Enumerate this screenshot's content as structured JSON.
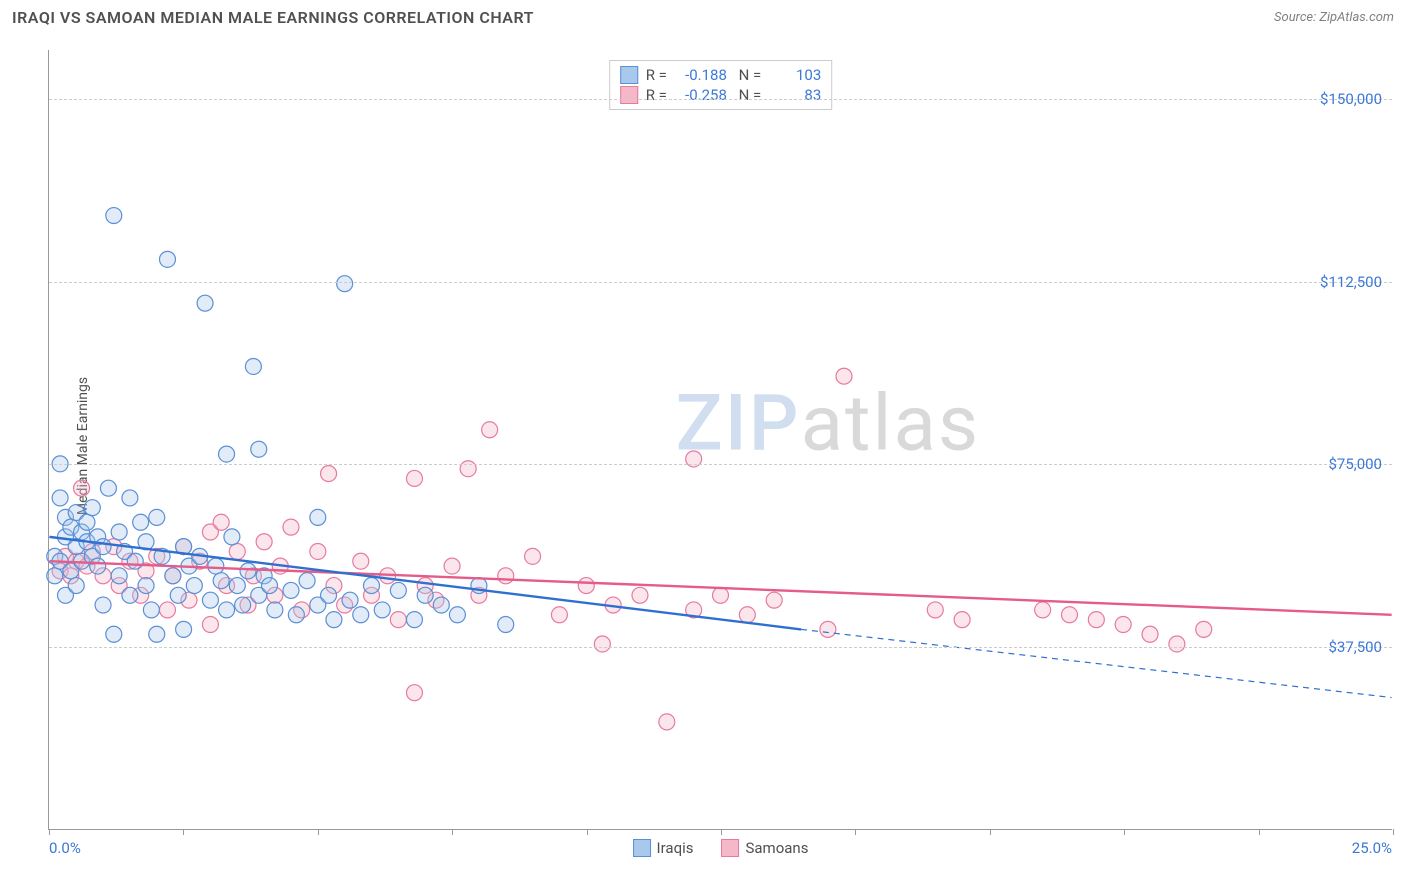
{
  "header": {
    "title": "IRAQI VS SAMOAN MEDIAN MALE EARNINGS CORRELATION CHART",
    "source": "Source: ZipAtlas.com"
  },
  "watermark": {
    "part1": "ZIP",
    "part2": "atlas"
  },
  "chart": {
    "type": "scatter",
    "background_color": "#ffffff",
    "grid_color": "#cccccc",
    "axis_color": "#999999",
    "ylabel": "Median Male Earnings",
    "ylabel_fontsize": 14,
    "xlim": [
      0,
      25
    ],
    "ylim": [
      0,
      160000
    ],
    "x_left_label": "0.0%",
    "x_right_label": "25.0%",
    "xticks": [
      0,
      2.5,
      5,
      7.5,
      10,
      12.5,
      15,
      17.5,
      20,
      22.5,
      25
    ],
    "yticks": [
      {
        "value": 37500,
        "label": "$37,500"
      },
      {
        "value": 75000,
        "label": "$75,000"
      },
      {
        "value": 112500,
        "label": "$112,500"
      },
      {
        "value": 150000,
        "label": "$150,000"
      }
    ],
    "tick_label_color": "#3b78d8",
    "tick_label_fontsize": 15,
    "marker_radius": 8,
    "marker_fill_opacity": 0.35,
    "marker_stroke_width": 1.2,
    "line_width_solid": 2.4,
    "line_width_dashed": 1.2,
    "series": {
      "iraqi": {
        "label": "Iraqis",
        "fill_color": "#a8c8ec",
        "stroke_color": "#5b8fd6",
        "line_color": "#2f6fd0",
        "R": "-0.188",
        "N": "103",
        "trend_solid": {
          "x1": 0,
          "y1": 60000,
          "x2": 14,
          "y2": 41000
        },
        "trend_dashed": {
          "x1": 14,
          "y1": 41000,
          "x2": 25,
          "y2": 27000
        },
        "points": [
          [
            0.1,
            56000
          ],
          [
            0.1,
            52000
          ],
          [
            0.2,
            75000
          ],
          [
            0.2,
            55000
          ],
          [
            0.2,
            68000
          ],
          [
            0.3,
            60000
          ],
          [
            0.3,
            48000
          ],
          [
            0.3,
            64000
          ],
          [
            0.4,
            62000
          ],
          [
            0.4,
            53000
          ],
          [
            0.5,
            58000
          ],
          [
            0.5,
            65000
          ],
          [
            0.5,
            50000
          ],
          [
            0.6,
            61000
          ],
          [
            0.6,
            55000
          ],
          [
            0.7,
            59000
          ],
          [
            0.7,
            63000
          ],
          [
            0.8,
            56000
          ],
          [
            0.8,
            66000
          ],
          [
            0.9,
            54000
          ],
          [
            0.9,
            60000
          ],
          [
            1.0,
            46000
          ],
          [
            1.0,
            58000
          ],
          [
            1.1,
            70000
          ],
          [
            1.2,
            40000
          ],
          [
            1.2,
            126000
          ],
          [
            1.3,
            52000
          ],
          [
            1.3,
            61000
          ],
          [
            1.4,
            57000
          ],
          [
            1.5,
            48000
          ],
          [
            1.5,
            68000
          ],
          [
            1.6,
            55000
          ],
          [
            1.7,
            63000
          ],
          [
            1.8,
            50000
          ],
          [
            1.8,
            59000
          ],
          [
            1.9,
            45000
          ],
          [
            2.0,
            64000
          ],
          [
            2.0,
            40000
          ],
          [
            2.1,
            56000
          ],
          [
            2.2,
            117000
          ],
          [
            2.3,
            52000
          ],
          [
            2.4,
            48000
          ],
          [
            2.5,
            58000
          ],
          [
            2.5,
            41000
          ],
          [
            2.6,
            54000
          ],
          [
            2.7,
            50000
          ],
          [
            2.8,
            56000
          ],
          [
            2.9,
            108000
          ],
          [
            3.0,
            47000
          ],
          [
            3.1,
            54000
          ],
          [
            3.2,
            51000
          ],
          [
            3.3,
            77000
          ],
          [
            3.3,
            45000
          ],
          [
            3.4,
            60000
          ],
          [
            3.5,
            50000
          ],
          [
            3.6,
            46000
          ],
          [
            3.7,
            53000
          ],
          [
            3.8,
            95000
          ],
          [
            3.9,
            48000
          ],
          [
            3.9,
            78000
          ],
          [
            4.0,
            52000
          ],
          [
            4.1,
            50000
          ],
          [
            4.2,
            45000
          ],
          [
            4.5,
            49000
          ],
          [
            4.6,
            44000
          ],
          [
            4.8,
            51000
          ],
          [
            5.0,
            46000
          ],
          [
            5.0,
            64000
          ],
          [
            5.2,
            48000
          ],
          [
            5.3,
            43000
          ],
          [
            5.5,
            112000
          ],
          [
            5.6,
            47000
          ],
          [
            5.8,
            44000
          ],
          [
            6.0,
            50000
          ],
          [
            6.2,
            45000
          ],
          [
            6.5,
            49000
          ],
          [
            6.8,
            43000
          ],
          [
            7.0,
            48000
          ],
          [
            7.3,
            46000
          ],
          [
            7.6,
            44000
          ],
          [
            8.0,
            50000
          ],
          [
            8.5,
            42000
          ]
        ]
      },
      "samoan": {
        "label": "Samoans",
        "fill_color": "#f4b8c8",
        "stroke_color": "#e879a0",
        "line_color": "#e55b8a",
        "R": "-0.258",
        "N": "83",
        "trend_solid": {
          "x1": 0,
          "y1": 55000,
          "x2": 25,
          "y2": 44000
        },
        "trend_dashed": null,
        "points": [
          [
            0.2,
            53000
          ],
          [
            0.3,
            56000
          ],
          [
            0.4,
            52000
          ],
          [
            0.5,
            55000
          ],
          [
            0.6,
            70000
          ],
          [
            0.7,
            54000
          ],
          [
            0.8,
            57000
          ],
          [
            1.0,
            52000
          ],
          [
            1.2,
            58000
          ],
          [
            1.3,
            50000
          ],
          [
            1.5,
            55000
          ],
          [
            1.7,
            48000
          ],
          [
            1.8,
            53000
          ],
          [
            2.0,
            56000
          ],
          [
            2.2,
            45000
          ],
          [
            2.3,
            52000
          ],
          [
            2.5,
            58000
          ],
          [
            2.6,
            47000
          ],
          [
            2.8,
            55000
          ],
          [
            3.0,
            61000
          ],
          [
            3.0,
            42000
          ],
          [
            3.2,
            63000
          ],
          [
            3.3,
            50000
          ],
          [
            3.5,
            57000
          ],
          [
            3.7,
            46000
          ],
          [
            3.8,
            52000
          ],
          [
            4.0,
            59000
          ],
          [
            4.2,
            48000
          ],
          [
            4.3,
            54000
          ],
          [
            4.5,
            62000
          ],
          [
            4.7,
            45000
          ],
          [
            5.0,
            57000
          ],
          [
            5.2,
            73000
          ],
          [
            5.3,
            50000
          ],
          [
            5.5,
            46000
          ],
          [
            5.8,
            55000
          ],
          [
            6.0,
            48000
          ],
          [
            6.3,
            52000
          ],
          [
            6.5,
            43000
          ],
          [
            6.8,
            72000
          ],
          [
            6.8,
            28000
          ],
          [
            7.0,
            50000
          ],
          [
            7.2,
            47000
          ],
          [
            7.5,
            54000
          ],
          [
            7.8,
            74000
          ],
          [
            8.0,
            48000
          ],
          [
            8.2,
            82000
          ],
          [
            8.5,
            52000
          ],
          [
            9.0,
            56000
          ],
          [
            9.5,
            44000
          ],
          [
            10.0,
            50000
          ],
          [
            10.3,
            38000
          ],
          [
            10.5,
            46000
          ],
          [
            11.0,
            48000
          ],
          [
            11.5,
            22000
          ],
          [
            12.0,
            45000
          ],
          [
            12.0,
            76000
          ],
          [
            12.5,
            48000
          ],
          [
            13.0,
            44000
          ],
          [
            13.5,
            47000
          ],
          [
            14.5,
            41000
          ],
          [
            14.8,
            93000
          ],
          [
            16.5,
            45000
          ],
          [
            17.0,
            43000
          ],
          [
            18.5,
            45000
          ],
          [
            19.0,
            44000
          ],
          [
            19.5,
            43000
          ],
          [
            20.0,
            42000
          ],
          [
            20.5,
            40000
          ],
          [
            21.0,
            38000
          ],
          [
            21.5,
            41000
          ]
        ]
      }
    },
    "bottom_legend": [
      {
        "key": "iraqi",
        "label": "Iraqis"
      },
      {
        "key": "samoan",
        "label": "Samoans"
      }
    ]
  }
}
